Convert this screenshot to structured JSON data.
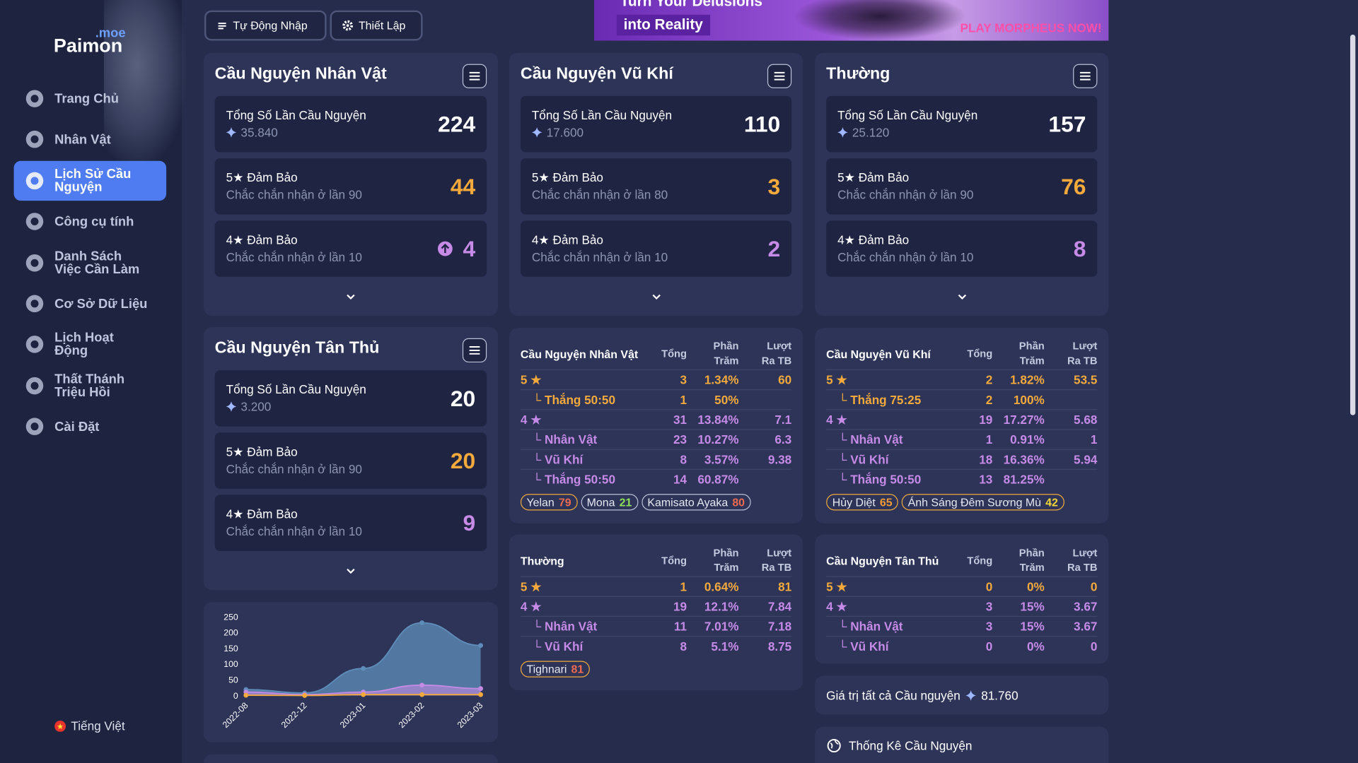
{
  "sidebar": {
    "logo": {
      "name": "Paimon",
      "suffix": ".moe"
    },
    "nav": [
      "Trang Chủ",
      "Nhân Vật",
      "Lịch Sử Cầu Nguyện",
      "Công cụ tính",
      "Danh Sách Việc Cần Làm",
      "Cơ Sở Dữ Liệu",
      "Lịch Hoạt Động",
      "Thất Thánh Triệu Hồi",
      "Cài Đặt"
    ],
    "active": 2,
    "language": "Tiếng Việt"
  },
  "toolbar": {
    "buttons": [
      "Tự Động Nhập",
      "Thiết Lập"
    ]
  },
  "banner": {
    "lines": [
      "Turn Your Delusions",
      "into Reality"
    ],
    "cta": "PLAY MORPHEUS NOW!"
  },
  "summary_cards": [
    {
      "title": "Cầu Nguyện Nhân Vật",
      "total": {
        "label": "Tổng Số Lần Cầu Nguyện",
        "gems": "35.840",
        "value": 224
      },
      "five": {
        "label": "5★ Đảm Bảo",
        "note": "Chắc chắn nhận ở lần 90",
        "value": 44
      },
      "four": {
        "label": "4★ Đảm Bảo",
        "note": "Chắc chắn nhận ở lần 10",
        "value": 4,
        "arrow": true
      }
    },
    {
      "title": "Cầu Nguyện Vũ Khí",
      "total": {
        "label": "Tổng Số Lần Cầu Nguyện",
        "gems": "17.600",
        "value": 110
      },
      "five": {
        "label": "5★ Đảm Bảo",
        "note": "Chắc chắn nhận ở lần 80",
        "value": 3
      },
      "four": {
        "label": "4★ Đảm Bảo",
        "note": "Chắc chắn nhận ở lần 10",
        "value": 2
      }
    },
    {
      "title": "Thường",
      "total": {
        "label": "Tổng Số Lần Cầu Nguyện",
        "gems": "25.120",
        "value": 157
      },
      "five": {
        "label": "5★ Đảm Bảo",
        "note": "Chắc chắn nhận ở lần 90",
        "value": 76
      },
      "four": {
        "label": "4★ Đảm Bảo",
        "note": "Chắc chắn nhận ở lần 10",
        "value": 8
      }
    },
    {
      "title": "Cầu Nguyện Tân Thủ",
      "total": {
        "label": "Tổng Số Lần Cầu Nguyện",
        "gems": "3.200",
        "value": 20
      },
      "five": {
        "label": "5★ Đảm Bảo",
        "note": "Chắc chắn nhận ở lần 90",
        "value": 20
      },
      "four": {
        "label": "4★ Đảm Bảo",
        "note": "Chắc chắn nhận ở lần 10",
        "value": 9
      }
    }
  ],
  "tables": [
    {
      "title": "Cầu Nguyện Nhân Vật",
      "headers": [
        "Tổng",
        "Phần Trăm",
        "Lượt Ra TB"
      ],
      "rows": [
        {
          "rarity": 5,
          "indent": false,
          "label": "5 ★",
          "total": "3",
          "percent": "1.34%",
          "average": "60"
        },
        {
          "rarity": 5,
          "indent": true,
          "label": "└ Thắng 50:50",
          "total": "1",
          "percent": "50%",
          "average": null
        },
        {
          "rarity": 4,
          "indent": false,
          "label": "4 ★",
          "total": "31",
          "percent": "13.84%",
          "average": "7.1"
        },
        {
          "rarity": 4,
          "indent": true,
          "label": "└ Nhân Vật",
          "total": "23",
          "percent": "10.27%",
          "average": "6.3"
        },
        {
          "rarity": 4,
          "indent": true,
          "label": "└ Vũ Khí",
          "total": "8",
          "percent": "3.57%",
          "average": "9.38"
        },
        {
          "rarity": 4,
          "indent": true,
          "label": "└ Thắng 50:50",
          "total": "14",
          "percent": "60.87%",
          "average": null
        }
      ],
      "tags": [
        {
          "name": "Yelan",
          "pity": "79",
          "color": "#f06a4f",
          "border": "#f0a93b"
        },
        {
          "name": "Mona",
          "pity": "21",
          "color": "#8fe05a",
          "border": "#b9bfd6"
        },
        {
          "name": "Kamisato Ayaka",
          "pity": "80",
          "color": "#f06a4f",
          "border": "#b9bfd6"
        }
      ]
    },
    {
      "title": "Cầu Nguyện Vũ Khí",
      "headers": [
        "Tổng",
        "Phần Trăm",
        "Lượt Ra TB"
      ],
      "rows": [
        {
          "rarity": 5,
          "indent": false,
          "label": "5 ★",
          "total": "2",
          "percent": "1.82%",
          "average": "53.5"
        },
        {
          "rarity": 5,
          "indent": true,
          "label": "└ Thắng 75:25",
          "total": "2",
          "percent": "100%",
          "average": null
        },
        {
          "rarity": 4,
          "indent": false,
          "label": "4 ★",
          "total": "19",
          "percent": "17.27%",
          "average": "5.68"
        },
        {
          "rarity": 4,
          "indent": true,
          "label": "└ Nhân Vật",
          "total": "1",
          "percent": "0.91%",
          "average": "1"
        },
        {
          "rarity": 4,
          "indent": true,
          "label": "└ Vũ Khí",
          "total": "18",
          "percent": "16.36%",
          "average": "5.94"
        },
        {
          "rarity": 4,
          "indent": true,
          "label": "└ Thắng 50:50",
          "total": "13",
          "percent": "81.25%",
          "average": null
        }
      ],
      "tags": [
        {
          "name": "Hủy Diệt",
          "pity": "65",
          "color": "#f39a35",
          "border": "#f0a93b"
        },
        {
          "name": "Ánh Sáng Đêm Sương Mù",
          "pity": "42",
          "color": "#f7d63a",
          "border": "#f0a93b"
        }
      ]
    },
    {
      "title": "Thường",
      "headers": [
        "Tổng",
        "Phần Trăm",
        "Lượt Ra TB"
      ],
      "rows": [
        {
          "rarity": 5,
          "indent": false,
          "label": "5 ★",
          "total": "1",
          "percent": "0.64%",
          "average": "81"
        },
        {
          "rarity": 4,
          "indent": false,
          "label": "4 ★",
          "total": "19",
          "percent": "12.1%",
          "average": "7.84"
        },
        {
          "rarity": 4,
          "indent": true,
          "label": "└ Nhân Vật",
          "total": "11",
          "percent": "7.01%",
          "average": "7.18"
        },
        {
          "rarity": 4,
          "indent": true,
          "label": "└ Vũ Khí",
          "total": "8",
          "percent": "5.1%",
          "average": "8.75"
        }
      ],
      "tags": [
        {
          "name": "Tighnari",
          "pity": "81",
          "color": "#f06a4f",
          "border": "#f0a93b"
        }
      ]
    },
    {
      "title": "Cầu Nguyện Tân Thủ",
      "headers": [
        "Tổng",
        "Phần Trăm",
        "Lượt Ra TB"
      ],
      "rows": [
        {
          "rarity": 5,
          "indent": false,
          "label": "5 ★",
          "total": "0",
          "percent": "0%",
          "average": "0"
        },
        {
          "rarity": 4,
          "indent": false,
          "label": "4 ★",
          "total": "3",
          "percent": "15%",
          "average": "3.67"
        },
        {
          "rarity": 4,
          "indent": true,
          "label": "└ Nhân Vật",
          "total": "3",
          "percent": "15%",
          "average": "3.67"
        },
        {
          "rarity": 4,
          "indent": true,
          "label": "└ Vũ Khí",
          "total": "0",
          "percent": "0%",
          "average": "0"
        }
      ],
      "tags": []
    }
  ],
  "worth": {
    "label": "Giá trị tất cả Cầu nguyện",
    "value": "81.760"
  },
  "stats_link": "Thống Kê Cầu Nguyện",
  "chart_data": {
    "type": "area",
    "categories": [
      "2022-08",
      "2022-12",
      "2023-01",
      "2023-02",
      "2023-03"
    ],
    "series": [
      {
        "color": "#5f8dba",
        "values": [
          19,
          8,
          86,
          231,
          159
        ]
      },
      {
        "color": "#c48be4",
        "values": [
          11,
          3,
          11,
          33,
          22
        ]
      },
      {
        "color": "#f3a93c",
        "values": [
          1,
          0,
          3,
          3,
          3
        ]
      }
    ],
    "ylim": [
      0,
      250
    ],
    "yticks": [
      0,
      50,
      100,
      150,
      200,
      250
    ],
    "grid": false
  }
}
